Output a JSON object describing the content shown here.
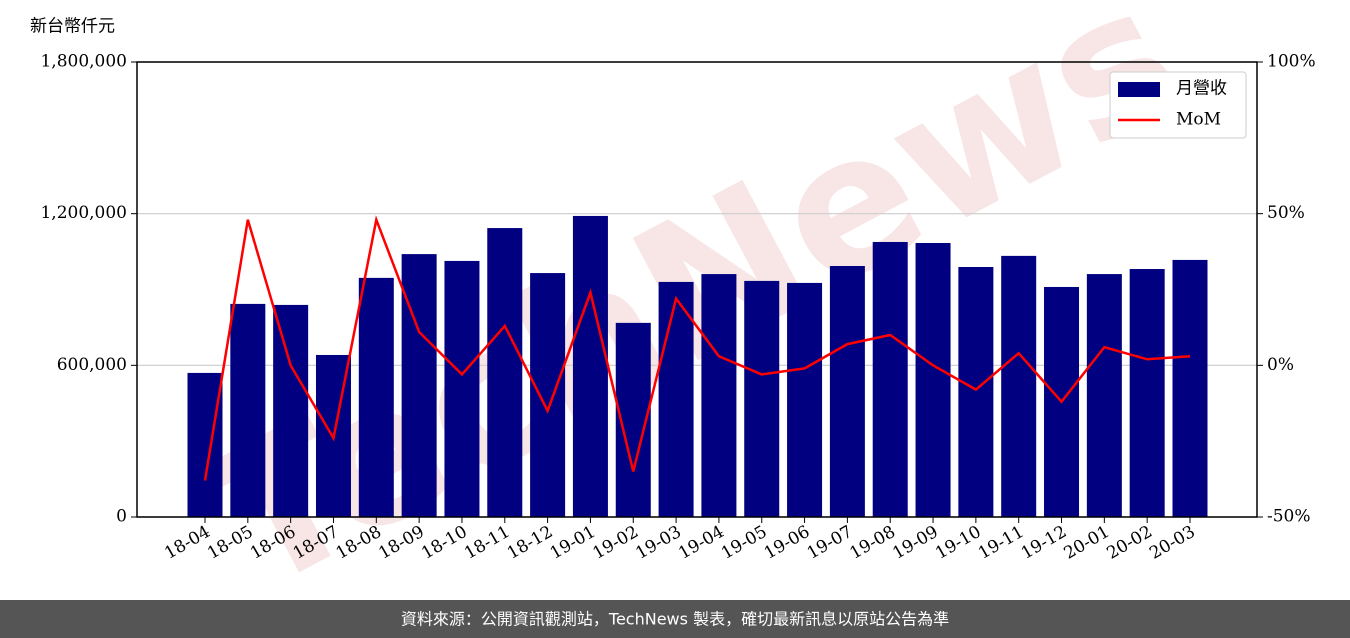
{
  "chart_data": {
    "type": "bar_line",
    "y_label": "新台幣仟元",
    "watermark": "TechNews",
    "source": "資料來源：公開資訊觀測站，TechNews 製表，確切最新訊息以原站公告為準",
    "categories": [
      "18-04",
      "18-05",
      "18-06",
      "18-07",
      "18-08",
      "18-09",
      "18-10",
      "18-11",
      "18-12",
      "19-01",
      "19-02",
      "19-03",
      "19-04",
      "19-05",
      "19-06",
      "19-07",
      "19-08",
      "19-09",
      "19-10",
      "19-11",
      "19-12",
      "20-01",
      "20-02",
      "20-03"
    ],
    "series": [
      {
        "name": "月營收",
        "color": "#000080",
        "type": "bar",
        "values": [
          570000,
          843000,
          839000,
          641000,
          946000,
          1040000,
          1013000,
          1143000,
          965000,
          1191000,
          768000,
          930000,
          961000,
          934000,
          926000,
          993000,
          1088000,
          1084000,
          989000,
          1033000,
          910000,
          961000,
          981000,
          1017000
        ]
      },
      {
        "name": "MoM",
        "color": "#ff0000",
        "type": "line",
        "axis": "y2",
        "values": [
          -38,
          48,
          0,
          -24,
          48,
          11,
          -3,
          13,
          -15,
          24,
          -35,
          22,
          3,
          -3,
          -1,
          7,
          10,
          0,
          -8,
          4,
          -12,
          6,
          2,
          3
        ]
      }
    ],
    "ylim": [
      0,
      1800000
    ],
    "yticks": [
      {
        "value": 0,
        "label": "0"
      },
      {
        "value": 600000,
        "label": "600,000"
      },
      {
        "value": 1200000,
        "label": "1,200,000"
      },
      {
        "value": 1800000,
        "label": "1,800,000"
      }
    ],
    "y2lim": [
      -50,
      100
    ],
    "y2ticks": [
      {
        "value": -50,
        "label": "-50%"
      },
      {
        "value": 0,
        "label": "0%"
      },
      {
        "value": 50,
        "label": "50%"
      },
      {
        "value": 100,
        "label": "100%"
      }
    ],
    "grid": true,
    "legend": "upper right"
  }
}
